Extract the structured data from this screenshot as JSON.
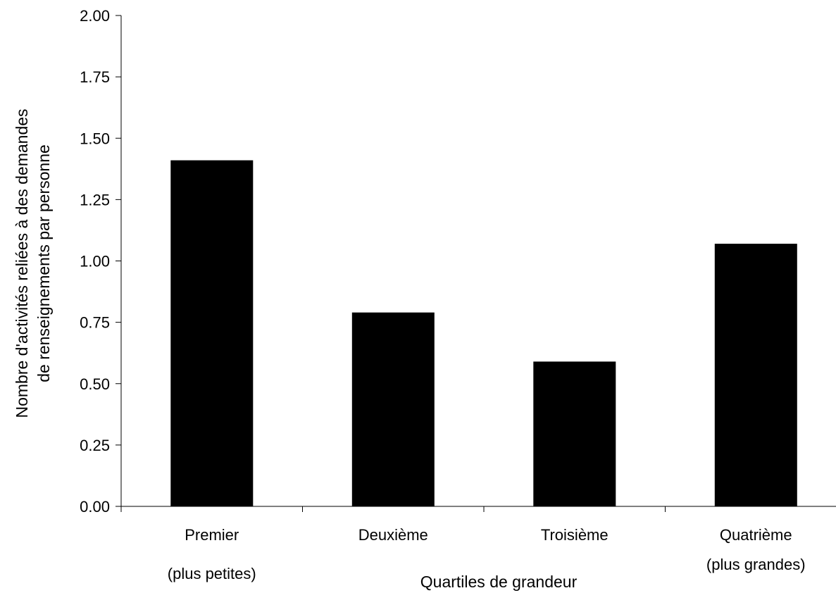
{
  "colors": {
    "bar": "#000000",
    "axis": "#000000",
    "background": "#ffffff"
  },
  "chart_data": {
    "type": "bar",
    "categories": [
      "Premier",
      "Deuxième",
      "Troisième",
      "Quatrième"
    ],
    "category_sublabels": [
      "(plus petites)",
      "",
      "",
      "(plus grandes)"
    ],
    "values": [
      1.41,
      0.79,
      0.59,
      1.07
    ],
    "yticks": [
      "0.00",
      "0.25",
      "0.50",
      "0.75",
      "1.00",
      "1.25",
      "1.50",
      "1.75",
      "2.00"
    ],
    "ylim": [
      0,
      2
    ],
    "xlabel": "Quartiles de grandeur",
    "ylabel_line1": "Nombre d'activités reliées à des demandes",
    "ylabel_line2": "de renseignements par personne",
    "grid": false,
    "legend": "none"
  }
}
